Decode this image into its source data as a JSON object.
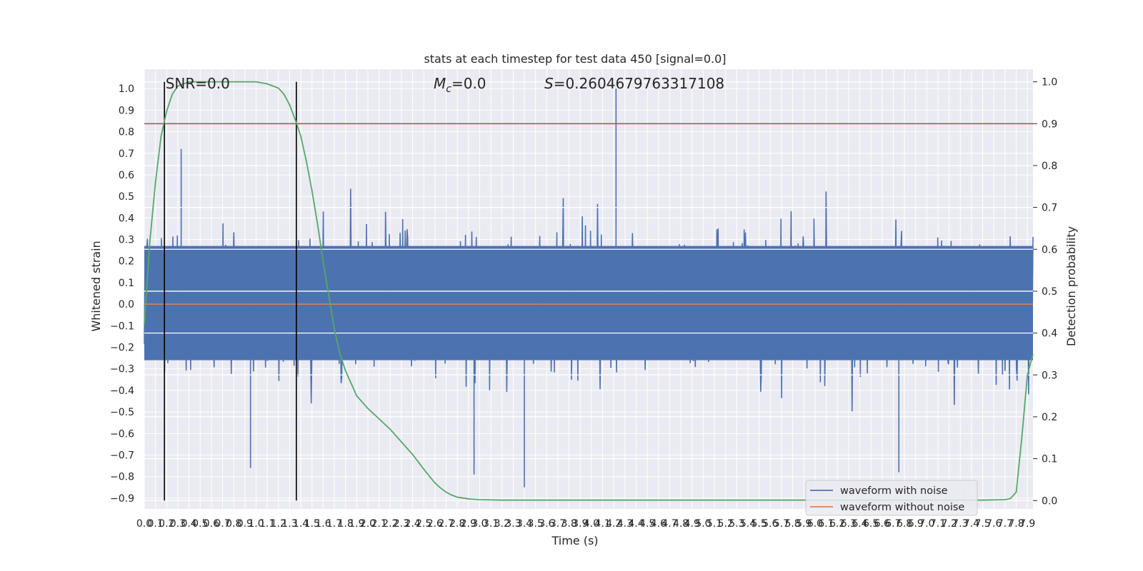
{
  "chart_data": {
    "type": "line",
    "title": "stats at each timestep for test data 450 [signal=0.0]",
    "xlabel": "Time (s)",
    "ylabel": "Whitened strain",
    "y2label": "Detection probability",
    "xlim": [
      0.0,
      7.95
    ],
    "ylim": [
      -0.95,
      1.09
    ],
    "y2lim": [
      -0.02,
      1.03
    ],
    "x_ticks": [
      0.0,
      0.1,
      0.2,
      0.3,
      0.4,
      0.5,
      0.6,
      0.7,
      0.8,
      0.9,
      1.0,
      1.1,
      1.2,
      1.3,
      1.4,
      1.5,
      1.6,
      1.7,
      1.8,
      1.9,
      2.0,
      2.1,
      2.2,
      2.3,
      2.4,
      2.5,
      2.6,
      2.7,
      2.8,
      2.9,
      3.0,
      3.1,
      3.2,
      3.3,
      3.4,
      3.5,
      3.6,
      3.7,
      3.8,
      3.9,
      4.0,
      4.1,
      4.2,
      4.3,
      4.4,
      4.5,
      4.6,
      4.7,
      4.8,
      4.9,
      5.0,
      5.1,
      5.2,
      5.3,
      5.4,
      5.5,
      5.6,
      5.7,
      5.8,
      5.9,
      6.0,
      6.1,
      6.2,
      6.3,
      6.4,
      6.5,
      6.6,
      6.7,
      6.8,
      6.9,
      7.0,
      7.1,
      7.2,
      7.3,
      7.4,
      7.5,
      7.6,
      7.7,
      7.8,
      7.9
    ],
    "y_ticks": [
      -0.9,
      -0.8,
      -0.7,
      -0.6,
      -0.5,
      -0.4,
      -0.3,
      -0.2,
      -0.1,
      0.0,
      0.1,
      0.2,
      0.3,
      0.4,
      0.5,
      0.6,
      0.7,
      0.8,
      0.9,
      1.0
    ],
    "y2_ticks": [
      0.0,
      0.1,
      0.2,
      0.3,
      0.4,
      0.5,
      0.6,
      0.7,
      0.8,
      0.9,
      1.0
    ],
    "grid": true,
    "legend_position": "lower-right",
    "annotations": {
      "snr": "SNR=0.0",
      "mc_symbol": "M",
      "mc_sub": "c",
      "mc_value": "=0.0",
      "s_symbol": "S",
      "s_value": "=0.2604679763317108"
    },
    "vertical_markers_x": [
      0.18,
      1.36
    ],
    "threshold_probability": 0.9,
    "series": [
      {
        "name": "waveform with noise",
        "axis": "left",
        "color": "#4c72b0",
        "approx_amplitude_band": [
          -0.5,
          0.5
        ],
        "peak_values": [
          {
            "x": 4.22,
            "y": 1.0
          },
          {
            "x": 0.33,
            "y": 0.72
          },
          {
            "x": 3.4,
            "y": -0.85
          },
          {
            "x": 6.75,
            "y": -0.78
          },
          {
            "x": 0.95,
            "y": -0.76
          },
          {
            "x": 2.95,
            "y": -0.79
          }
        ]
      },
      {
        "name": "waveform without noise",
        "axis": "left",
        "color": "#dd8452",
        "x": [
          0.0,
          7.95
        ],
        "y": [
          0.0,
          0.0
        ]
      },
      {
        "axis": "right",
        "color": "#55a868",
        "x": [
          0.0,
          0.05,
          0.1,
          0.15,
          0.2,
          0.25,
          0.3,
          0.35,
          0.4,
          0.5,
          0.6,
          0.7,
          0.8,
          0.9,
          1.0,
          1.1,
          1.2,
          1.25,
          1.3,
          1.35,
          1.4,
          1.45,
          1.5,
          1.55,
          1.6,
          1.65,
          1.7,
          1.75,
          1.8,
          1.85,
          1.9,
          2.0,
          2.1,
          2.2,
          2.3,
          2.4,
          2.5,
          2.55,
          2.6,
          2.65,
          2.7,
          2.75,
          2.8,
          2.9,
          3.0,
          3.2,
          3.5,
          4.0,
          5.0,
          6.0,
          7.0,
          7.5,
          7.7,
          7.75,
          7.8,
          7.85,
          7.9,
          7.95
        ],
        "y": [
          0.42,
          0.62,
          0.76,
          0.87,
          0.93,
          0.97,
          0.99,
          0.995,
          1.0,
          1.0,
          1.0,
          1.0,
          1.0,
          1.0,
          1.0,
          0.995,
          0.985,
          0.97,
          0.945,
          0.91,
          0.87,
          0.81,
          0.74,
          0.66,
          0.57,
          0.49,
          0.41,
          0.35,
          0.31,
          0.28,
          0.25,
          0.22,
          0.195,
          0.17,
          0.14,
          0.11,
          0.075,
          0.058,
          0.042,
          0.03,
          0.02,
          0.013,
          0.008,
          0.004,
          0.002,
          0.001,
          0.001,
          0.001,
          0.001,
          0.001,
          0.001,
          0.001,
          0.002,
          0.005,
          0.02,
          0.15,
          0.3,
          0.35
        ]
      }
    ]
  }
}
